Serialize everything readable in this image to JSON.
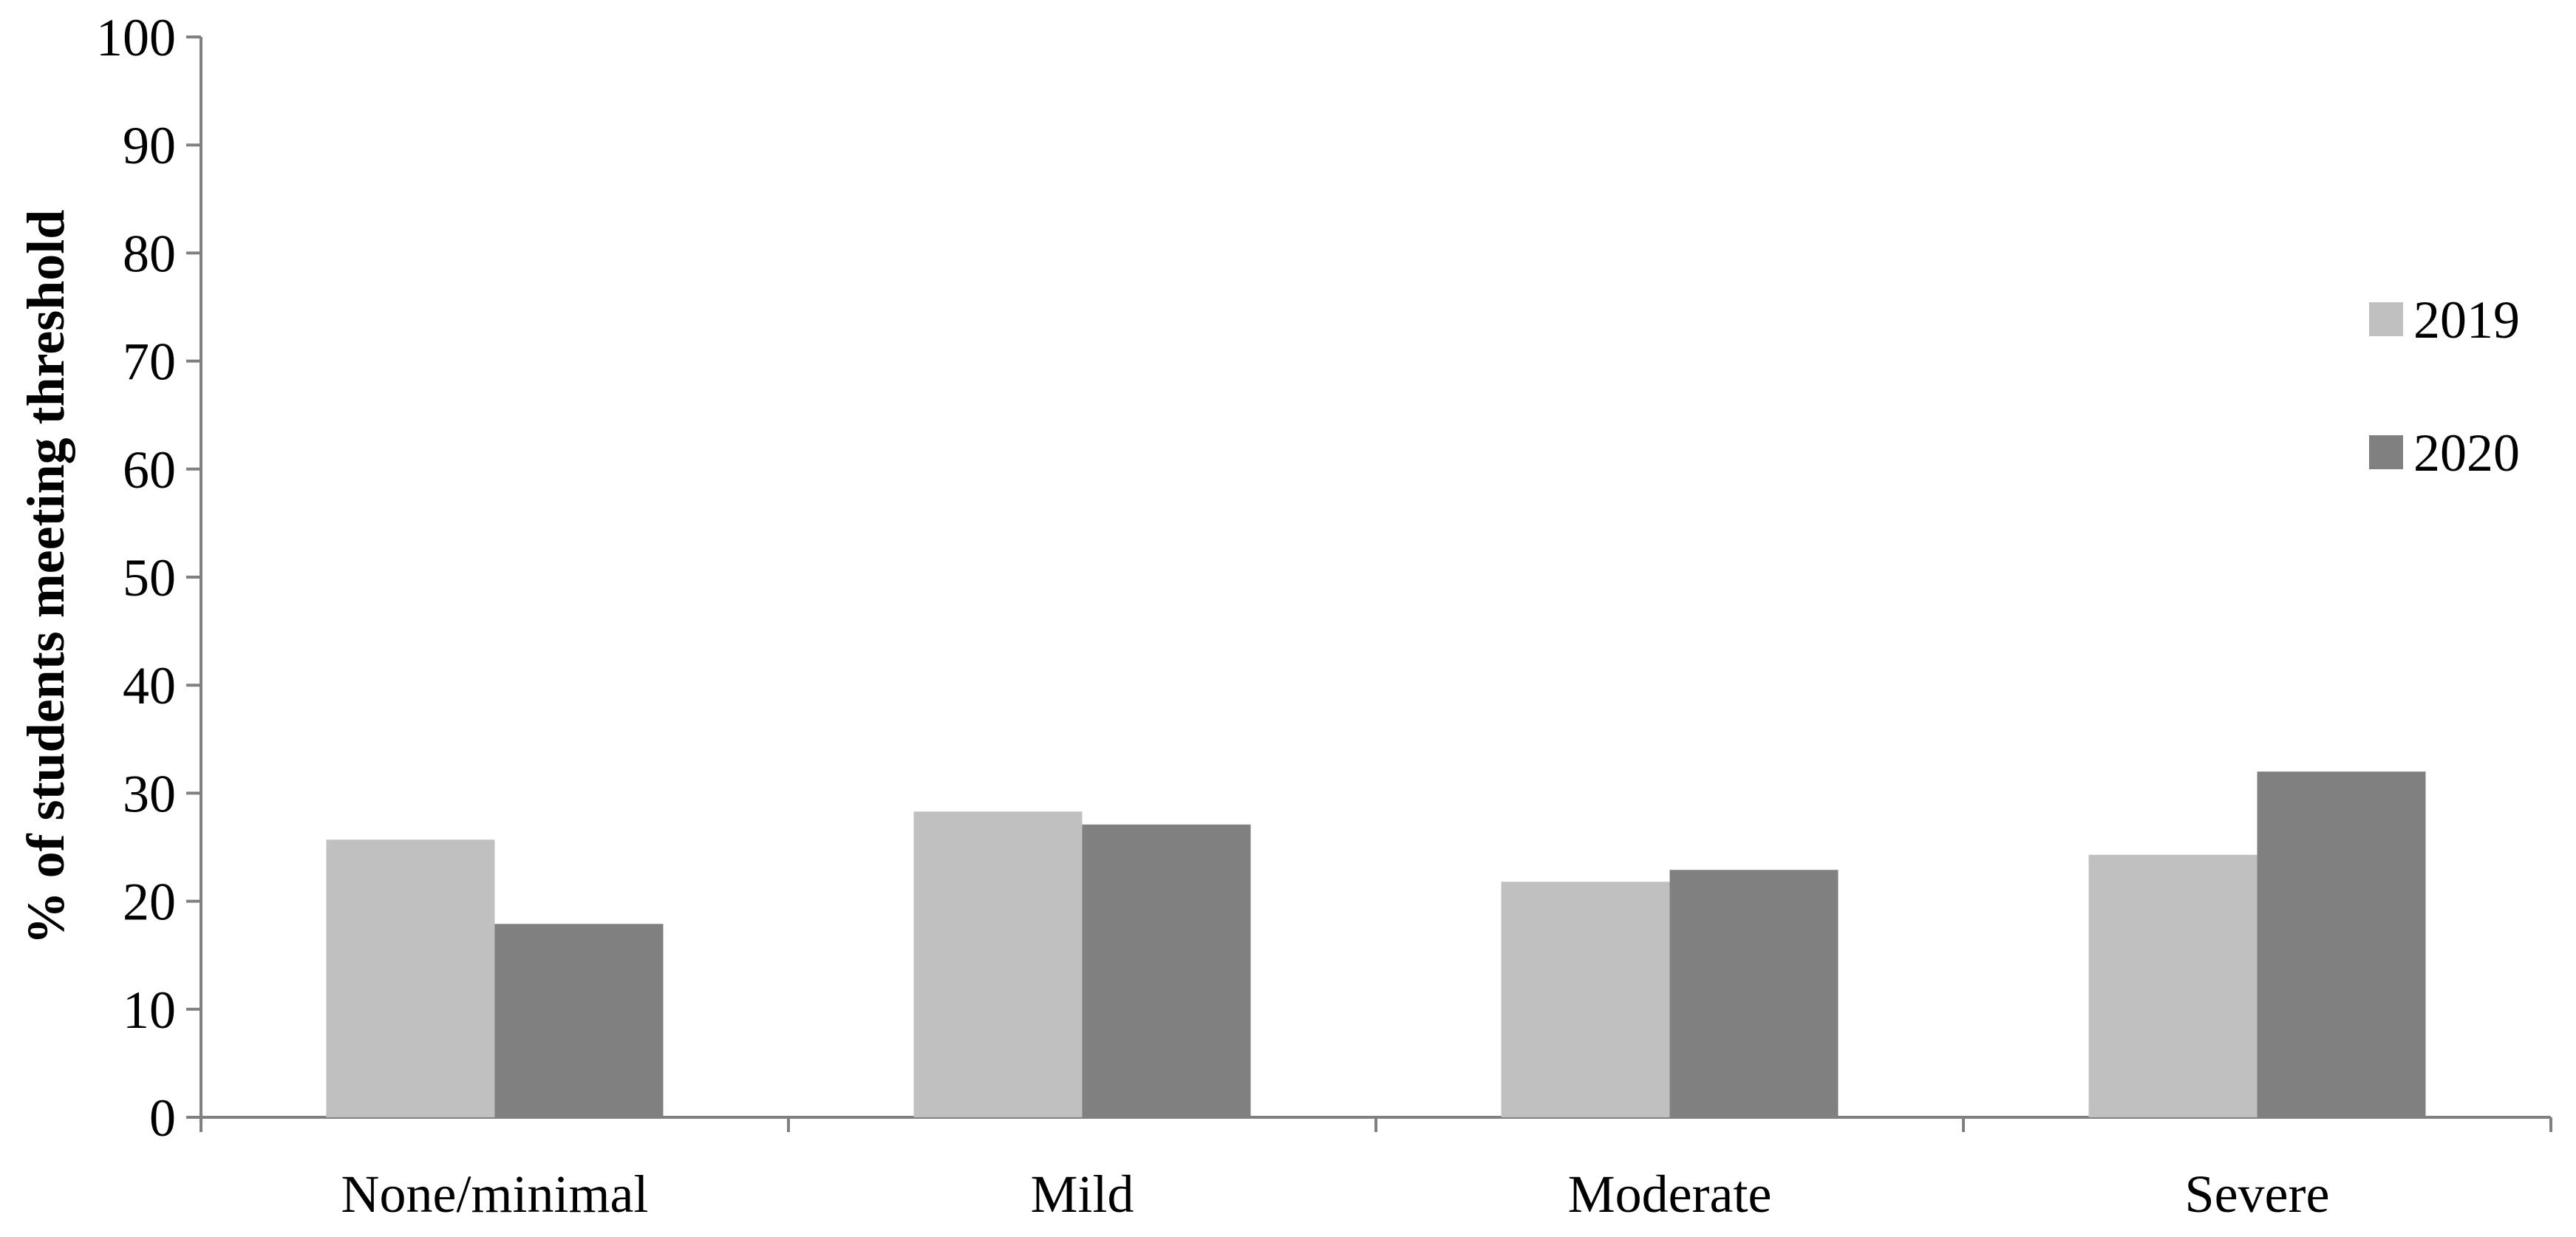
{
  "chart_data": {
    "type": "bar",
    "title": "",
    "xlabel": "",
    "ylabel": "% of students meeting threshold",
    "categories": [
      "None/minimal",
      "Mild",
      "Moderate",
      "Severe"
    ],
    "series": [
      {
        "name": "2019",
        "values": [
          25.7,
          28.3,
          21.8,
          24.3
        ],
        "color": "#c0c0c0"
      },
      {
        "name": "2020",
        "values": [
          17.9,
          27.1,
          22.9,
          32.0
        ],
        "color": "#808080"
      }
    ],
    "ylim": [
      0,
      100
    ],
    "yticks": [
      "0",
      "10",
      "20",
      "30",
      "40",
      "50",
      "60",
      "70",
      "80",
      "90",
      "100"
    ],
    "grid": false,
    "legend": "right"
  }
}
